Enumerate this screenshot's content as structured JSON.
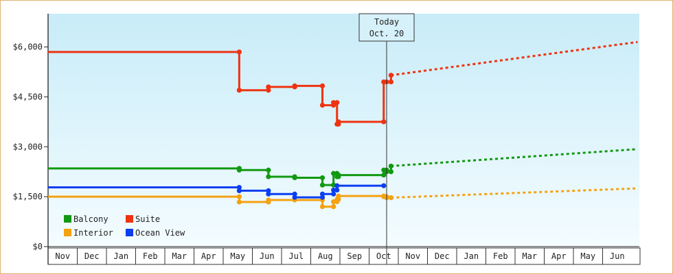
{
  "chart_data": {
    "type": "line",
    "title": "",
    "xlabel": "",
    "ylabel": "",
    "ylim": [
      0,
      7000
    ],
    "yticks": [
      {
        "value": 0,
        "label": "$0"
      },
      {
        "value": 1500,
        "label": "$1,500"
      },
      {
        "value": 3000,
        "label": "$3,000"
      },
      {
        "value": 4500,
        "label": "$4,500"
      },
      {
        "value": 6000,
        "label": "$6,000"
      }
    ],
    "months": [
      "Nov",
      "Dec",
      "Jan",
      "Feb",
      "Mar",
      "Apr",
      "May",
      "Jun",
      "Jul",
      "Aug",
      "Sep",
      "Oct",
      "Nov",
      "Dec",
      "Jan",
      "Feb",
      "Mar",
      "Apr",
      "May",
      "Jun"
    ],
    "today": {
      "label_line1": "Today",
      "label_line2": "Oct. 20",
      "x": 11.6
    },
    "legend": {
      "position": "bottom-left"
    },
    "grid": false,
    "series": [
      {
        "name": "Balcony",
        "color": "#119911",
        "values": [
          [
            0,
            2350
          ],
          [
            6.55,
            2350
          ],
          [
            6.55,
            2300
          ],
          [
            7.55,
            2300
          ],
          [
            7.55,
            2100
          ],
          [
            8.45,
            2100
          ],
          [
            8.45,
            2070
          ],
          [
            9.4,
            2070
          ],
          [
            9.4,
            1850
          ],
          [
            9.78,
            1850
          ],
          [
            9.78,
            2200
          ],
          [
            9.9,
            2200
          ],
          [
            9.9,
            2100
          ],
          [
            9.95,
            2100
          ],
          [
            9.95,
            2150
          ],
          [
            11.5,
            2150
          ],
          [
            11.5,
            2300
          ],
          [
            11.6,
            2300
          ],
          [
            11.6,
            2250
          ],
          [
            11.75,
            2250
          ],
          [
            11.75,
            2420
          ]
        ],
        "forecast": [
          [
            11.75,
            2420
          ],
          [
            20.2,
            2930
          ]
        ]
      },
      {
        "name": "Suite",
        "color": "#ee3311",
        "values": [
          [
            0,
            5850
          ],
          [
            6.55,
            5850
          ],
          [
            6.55,
            4700
          ],
          [
            7.55,
            4700
          ],
          [
            7.55,
            4800
          ],
          [
            8.45,
            4800
          ],
          [
            8.45,
            4830
          ],
          [
            9.4,
            4830
          ],
          [
            9.4,
            4250
          ],
          [
            9.78,
            4250
          ],
          [
            9.78,
            4330
          ],
          [
            9.9,
            4330
          ],
          [
            9.9,
            3680
          ],
          [
            9.95,
            3680
          ],
          [
            9.95,
            3750
          ],
          [
            11.5,
            3750
          ],
          [
            11.5,
            4950
          ],
          [
            11.6,
            4950
          ],
          [
            11.6,
            4950
          ],
          [
            11.75,
            4950
          ],
          [
            11.75,
            5150
          ]
        ],
        "forecast": [
          [
            11.75,
            5150
          ],
          [
            20.2,
            6150
          ]
        ]
      },
      {
        "name": "Interior",
        "color": "#f4a210",
        "values": [
          [
            0,
            1500
          ],
          [
            6.55,
            1500
          ],
          [
            6.55,
            1340
          ],
          [
            7.55,
            1340
          ],
          [
            7.55,
            1400
          ],
          [
            8.45,
            1400
          ],
          [
            8.45,
            1400
          ],
          [
            9.4,
            1400
          ],
          [
            9.4,
            1200
          ],
          [
            9.78,
            1200
          ],
          [
            9.78,
            1350
          ],
          [
            9.9,
            1350
          ],
          [
            9.9,
            1420
          ],
          [
            9.95,
            1420
          ],
          [
            9.95,
            1520
          ],
          [
            11.5,
            1520
          ],
          [
            11.5,
            1500
          ],
          [
            11.6,
            1500
          ],
          [
            11.6,
            1470
          ],
          [
            11.75,
            1470
          ],
          [
            11.75,
            1470
          ]
        ],
        "forecast": [
          [
            11.75,
            1470
          ],
          [
            20.2,
            1750
          ]
        ]
      },
      {
        "name": "Ocean View",
        "color": "#0a3ef0",
        "values": [
          [
            0,
            1780
          ],
          [
            6.55,
            1780
          ],
          [
            6.55,
            1680
          ],
          [
            7.55,
            1680
          ],
          [
            7.55,
            1580
          ],
          [
            8.45,
            1580
          ],
          [
            8.45,
            1480
          ],
          [
            9.4,
            1480
          ],
          [
            9.4,
            1580
          ],
          [
            9.78,
            1580
          ],
          [
            9.78,
            1700
          ],
          [
            9.9,
            1700
          ],
          [
            9.9,
            1830
          ],
          [
            11.5,
            1830
          ]
        ],
        "forecast": []
      }
    ]
  }
}
